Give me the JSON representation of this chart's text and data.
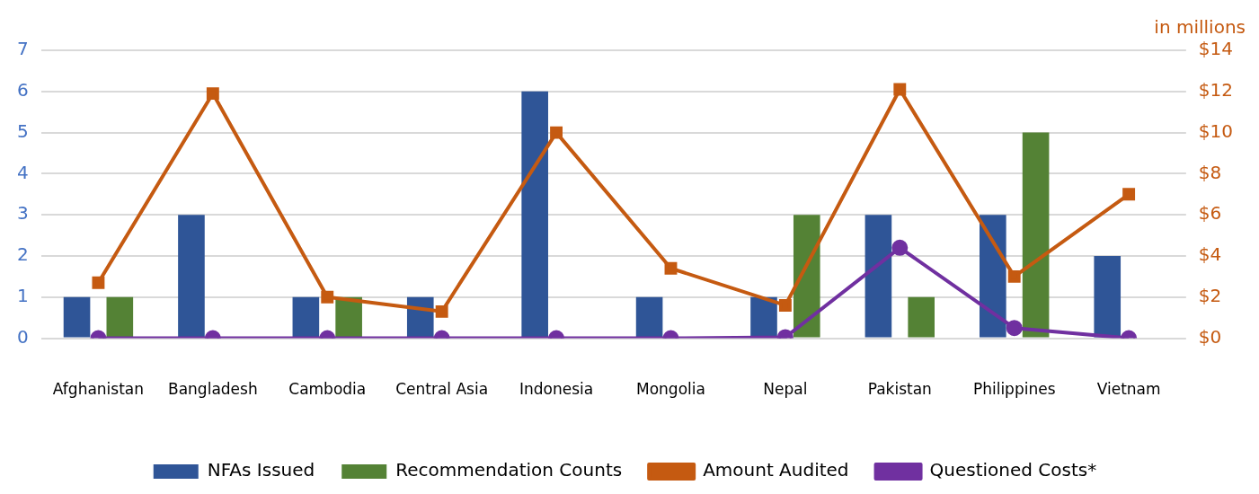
{
  "chart_data": {
    "type": "bar",
    "y2label": "in millions",
    "categories": [
      "Afghanistan",
      "Bangladesh",
      "Cambodia",
      "Central Asia",
      "Indonesia",
      "Mongolia",
      "Nepal",
      "Pakistan",
      "Philippines",
      "Vietnam"
    ],
    "series": [
      {
        "name": "NFAs Issued",
        "color": "#2f5597",
        "values": [
          1,
          3,
          1,
          1,
          6,
          1,
          1,
          3,
          3,
          2
        ]
      },
      {
        "name": "Recommendation Counts",
        "color": "#548235",
        "values": [
          1,
          0,
          1,
          0,
          0,
          0,
          3,
          1,
          5,
          0
        ]
      },
      {
        "name": "Amount Audited",
        "type": "line",
        "axis": "y2",
        "marker": "square",
        "color": "#c55a11",
        "values": [
          2.7,
          11.9,
          2.0,
          1.3,
          10.0,
          3.4,
          1.6,
          12.1,
          3.0,
          7.0
        ]
      },
      {
        "name": "Questioned Costs*",
        "type": "line",
        "axis": "y2",
        "marker": "circle",
        "color": "#7030a0",
        "values": [
          0,
          0,
          0,
          0,
          0,
          0,
          0.05,
          4.4,
          0.5,
          0
        ]
      }
    ],
    "ylim": [
      0,
      7
    ],
    "yticks": [
      0,
      1,
      2,
      3,
      4,
      5,
      6,
      7
    ],
    "y2lim": [
      0,
      14
    ],
    "y2ticks": [
      {
        "value": 0,
        "label": "$0"
      },
      {
        "value": 2,
        "label": "$2"
      },
      {
        "value": 4,
        "label": "$4"
      },
      {
        "value": 6,
        "label": "$6"
      },
      {
        "value": 8,
        "label": "$8"
      },
      {
        "value": 10,
        "label": "$10"
      },
      {
        "value": 12,
        "label": "$12"
      },
      {
        "value": 14,
        "label": "$14"
      }
    ],
    "grid": "y",
    "legend": "bottom"
  }
}
